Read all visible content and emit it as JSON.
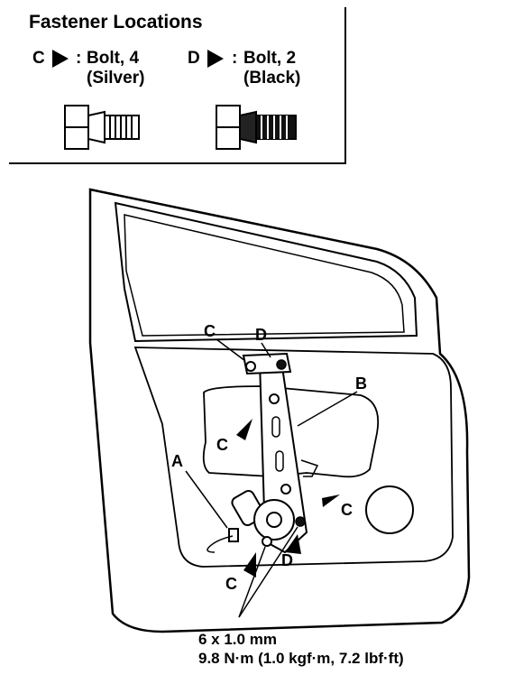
{
  "legend": {
    "title": "Fastener Locations",
    "items": [
      {
        "code": "C",
        "separator": ":",
        "desc": "Bolt, 4",
        "color_note": "(Silver)"
      },
      {
        "code": "D",
        "separator": ":",
        "desc": "Bolt, 2",
        "color_note": "(Black)"
      }
    ]
  },
  "callouts": {
    "a": "A",
    "b": "B",
    "c": "C",
    "d": "D"
  },
  "spec": {
    "size": "6 x 1.0 mm",
    "torque": "9.8 N·m (1.0 kgf·m, 7.2 lbf·ft)"
  }
}
